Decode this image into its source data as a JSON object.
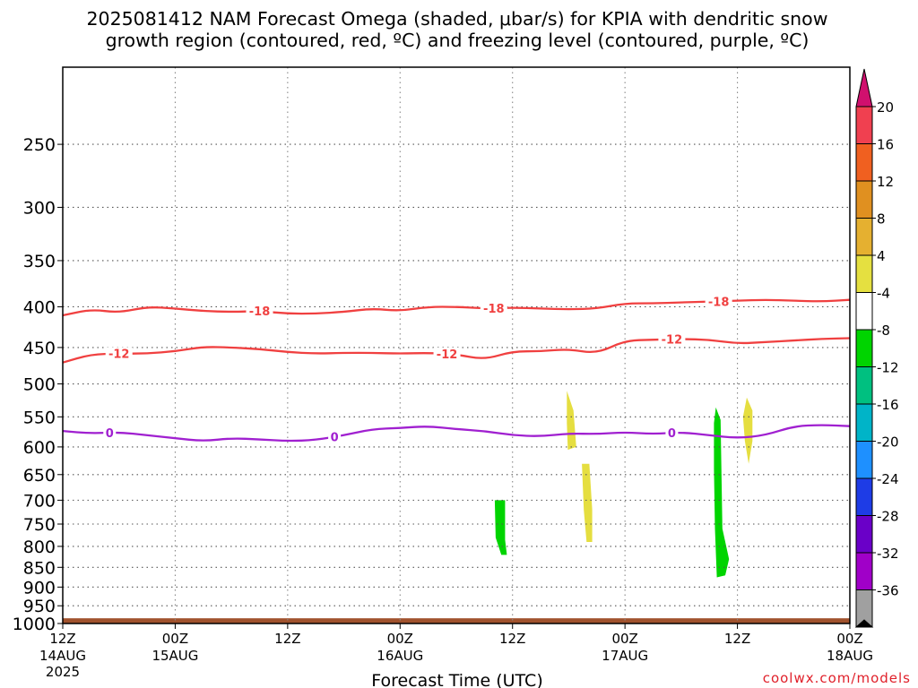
{
  "chart_data": {
    "type": "heatmap",
    "title_line1": "2025081412 NAM Forecast Omega (shaded, μbar/s) for KPIA with dendritic snow",
    "title_line2": "growth region (contoured, red, ºC) and freezing level (contoured, purple, ºC)",
    "xlabel": "Forecast Time (UTC)",
    "credit": "coolwx.com/models",
    "x_ticks": [
      {
        "hours": 0,
        "line1": "12Z",
        "line2": "14AUG",
        "line3": "2025"
      },
      {
        "hours": 12,
        "line1": "00Z",
        "line2": "15AUG",
        "line3": ""
      },
      {
        "hours": 24,
        "line1": "12Z",
        "line2": "",
        "line3": ""
      },
      {
        "hours": 36,
        "line1": "00Z",
        "line2": "16AUG",
        "line3": ""
      },
      {
        "hours": 48,
        "line1": "12Z",
        "line2": "",
        "line3": ""
      },
      {
        "hours": 60,
        "line1": "00Z",
        "line2": "17AUG",
        "line3": ""
      },
      {
        "hours": 72,
        "line1": "12Z",
        "line2": "",
        "line3": ""
      },
      {
        "hours": 84,
        "line1": "00Z",
        "line2": "18AUG",
        "line3": ""
      }
    ],
    "x_range_hours": [
      0,
      84
    ],
    "y_ticks": [
      "250",
      "300",
      "350",
      "400",
      "450",
      "500",
      "550",
      "600",
      "650",
      "700",
      "750",
      "800",
      "850",
      "900",
      "950",
      "1000"
    ],
    "y_range_hPa": [
      200,
      1000
    ],
    "y_scale": "log pressure (inverted)",
    "grid": true,
    "contours": [
      {
        "label": "-18",
        "color": "#f04040",
        "points": [
          [
            0,
            410
          ],
          [
            3,
            403
          ],
          [
            6,
            407
          ],
          [
            9,
            400
          ],
          [
            12,
            402
          ],
          [
            15,
            405
          ],
          [
            18,
            406
          ],
          [
            21,
            405
          ],
          [
            24,
            408
          ],
          [
            27,
            408
          ],
          [
            30,
            406
          ],
          [
            33,
            402
          ],
          [
            36,
            405
          ],
          [
            39,
            400
          ],
          [
            42,
            400
          ],
          [
            45,
            402
          ],
          [
            48,
            401
          ],
          [
            51,
            402
          ],
          [
            54,
            403
          ],
          [
            57,
            402
          ],
          [
            60,
            396
          ],
          [
            63,
            396
          ],
          [
            66,
            395
          ],
          [
            69,
            394
          ],
          [
            72,
            393
          ],
          [
            75,
            392
          ],
          [
            78,
            393
          ],
          [
            81,
            394
          ],
          [
            84,
            392
          ]
        ],
        "label_hours": [
          21,
          46,
          70
        ]
      },
      {
        "label": "-12",
        "color": "#f04040",
        "points": [
          [
            0,
            470
          ],
          [
            3,
            459
          ],
          [
            6,
            458
          ],
          [
            9,
            458
          ],
          [
            12,
            455
          ],
          [
            15,
            449
          ],
          [
            18,
            450
          ],
          [
            21,
            452
          ],
          [
            24,
            456
          ],
          [
            27,
            458
          ],
          [
            30,
            457
          ],
          [
            33,
            457
          ],
          [
            36,
            458
          ],
          [
            39,
            457
          ],
          [
            42,
            459
          ],
          [
            45,
            466
          ],
          [
            48,
            455
          ],
          [
            51,
            455
          ],
          [
            54,
            452
          ],
          [
            57,
            458
          ],
          [
            60,
            441
          ],
          [
            63,
            440
          ],
          [
            66,
            439
          ],
          [
            69,
            440
          ],
          [
            72,
            445
          ],
          [
            75,
            443
          ],
          [
            78,
            441
          ],
          [
            81,
            439
          ],
          [
            84,
            438
          ]
        ],
        "label_hours": [
          6,
          41,
          65
        ]
      },
      {
        "label": "0",
        "color": "#a020d0",
        "points": [
          [
            0,
            573
          ],
          [
            3,
            577
          ],
          [
            6,
            575
          ],
          [
            9,
            580
          ],
          [
            12,
            585
          ],
          [
            15,
            590
          ],
          [
            18,
            585
          ],
          [
            21,
            587
          ],
          [
            24,
            590
          ],
          [
            27,
            588
          ],
          [
            30,
            580
          ],
          [
            33,
            570
          ],
          [
            36,
            568
          ],
          [
            39,
            565
          ],
          [
            42,
            570
          ],
          [
            45,
            573
          ],
          [
            48,
            580
          ],
          [
            51,
            582
          ],
          [
            54,
            577
          ],
          [
            57,
            578
          ],
          [
            60,
            575
          ],
          [
            63,
            578
          ],
          [
            66,
            575
          ],
          [
            69,
            580
          ],
          [
            72,
            585
          ],
          [
            75,
            580
          ],
          [
            78,
            565
          ],
          [
            81,
            563
          ],
          [
            84,
            565
          ]
        ],
        "label_hours": [
          5,
          29,
          65
        ]
      }
    ],
    "shaded_regions": [
      {
        "value": -6,
        "color": "#00d400",
        "points": [
          [
            46.1,
            700
          ],
          [
            47.2,
            700
          ],
          [
            47.2,
            785
          ],
          [
            47.4,
            820
          ],
          [
            46.8,
            820
          ],
          [
            46.2,
            780
          ]
        ]
      },
      {
        "value": 6,
        "color": "#e5de40",
        "points": [
          [
            53.8,
            510
          ],
          [
            54.5,
            540
          ],
          [
            54.8,
            600
          ],
          [
            53.9,
            605
          ],
          [
            53.8,
            560
          ]
        ]
      },
      {
        "value": 6,
        "color": "#e5de40",
        "points": [
          [
            55.4,
            630
          ],
          [
            56.2,
            630
          ],
          [
            56.5,
            720
          ],
          [
            56.5,
            790
          ],
          [
            55.9,
            790
          ],
          [
            55.6,
            720
          ]
        ]
      },
      {
        "value": -6,
        "color": "#00d400",
        "points": [
          [
            69.7,
            535
          ],
          [
            70.2,
            555
          ],
          [
            70.3,
            650
          ],
          [
            70.4,
            760
          ],
          [
            71.1,
            830
          ],
          [
            70.7,
            870
          ],
          [
            69.8,
            875
          ],
          [
            69.6,
            760
          ],
          [
            69.5,
            640
          ],
          [
            69.5,
            560
          ]
        ]
      },
      {
        "value": 6,
        "color": "#e5de40",
        "points": [
          [
            73.0,
            520
          ],
          [
            73.6,
            540
          ],
          [
            73.6,
            590
          ],
          [
            73.2,
            630
          ],
          [
            72.8,
            590
          ],
          [
            72.6,
            550
          ]
        ]
      }
    ],
    "surface_band": {
      "color": "#a0522d",
      "top_hPa": 985
    },
    "colorbar": {
      "labels": [
        "20",
        "16",
        "12",
        "8",
        "4",
        "-4",
        "-8",
        "-12",
        "-16",
        "-20",
        "-24",
        "-28",
        "-32",
        "-36"
      ],
      "colors": [
        "#f04050",
        "#f06020",
        "#e09020",
        "#e5b030",
        "#e5e040",
        "#ffffff",
        "#00d400",
        "#00c080",
        "#00b4c8",
        "#1e90ff",
        "#1e3ce6",
        "#6a00c8",
        "#a000c8",
        "#a0a0a0"
      ],
      "top_arrow_color": "#d0106e",
      "bottom_arrow_color": "#000000"
    }
  }
}
